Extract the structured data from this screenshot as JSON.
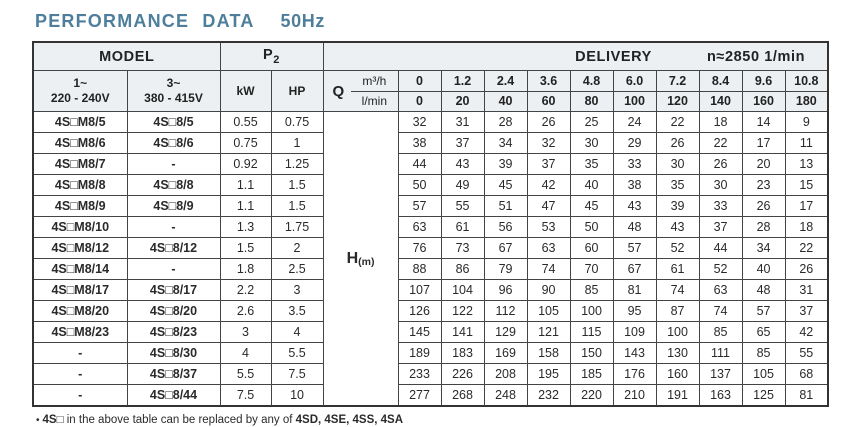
{
  "title": {
    "main": "PERFORMANCE DATA",
    "freq": "50Hz"
  },
  "colors": {
    "title_accent": "#4d7e9c",
    "header_bg": "#ecf0f3",
    "border": "#444444"
  },
  "table": {
    "header": {
      "model": "MODEL",
      "p2_base": "P",
      "p2_sub": "2",
      "delivery": "DELIVERY",
      "speed": "n≈2850 1/min",
      "col_1ph_line1": "1~",
      "col_1ph_line2": "220 - 240V",
      "col_3ph_line1": "3~",
      "col_3ph_line2": "380 - 415V",
      "kw": "kW",
      "hp": "HP",
      "q": "Q",
      "q_unit_top": "m³/h",
      "q_unit_bottom": "l/min",
      "flow_m3h": [
        "0",
        "1.2",
        "2.4",
        "3.6",
        "4.8",
        "6.0",
        "7.2",
        "8.4",
        "9.6",
        "10.8"
      ],
      "flow_lmin": [
        "0",
        "20",
        "40",
        "60",
        "80",
        "100",
        "120",
        "140",
        "160",
        "180"
      ]
    },
    "head_unit": {
      "label": "H",
      "unit": "(m)"
    },
    "rows": [
      {
        "model_1ph": "4S□M8/5",
        "model_3ph": "4S□8/5",
        "kw": "0.55",
        "hp": "0.75",
        "head": [
          32,
          31,
          28,
          26,
          25,
          24,
          22,
          18,
          14,
          9
        ]
      },
      {
        "model_1ph": "4S□M8/6",
        "model_3ph": "4S□8/6",
        "kw": "0.75",
        "hp": "1",
        "head": [
          38,
          37,
          34,
          32,
          30,
          29,
          26,
          22,
          17,
          11
        ]
      },
      {
        "model_1ph": "4S□M8/7",
        "model_3ph": "-",
        "kw": "0.92",
        "hp": "1.25",
        "head": [
          44,
          43,
          39,
          37,
          35,
          33,
          30,
          26,
          20,
          13
        ]
      },
      {
        "model_1ph": "4S□M8/8",
        "model_3ph": "4S□8/8",
        "kw": "1.1",
        "hp": "1.5",
        "head": [
          50,
          49,
          45,
          42,
          40,
          38,
          35,
          30,
          23,
          15
        ]
      },
      {
        "model_1ph": "4S□M8/9",
        "model_3ph": "4S□8/9",
        "kw": "1.1",
        "hp": "1.5",
        "head": [
          57,
          55,
          51,
          47,
          45,
          43,
          39,
          33,
          26,
          17
        ]
      },
      {
        "model_1ph": "4S□M8/10",
        "model_3ph": "-",
        "kw": "1.3",
        "hp": "1.75",
        "head": [
          63,
          61,
          56,
          53,
          50,
          48,
          43,
          37,
          28,
          18
        ]
      },
      {
        "model_1ph": "4S□M8/12",
        "model_3ph": "4S□8/12",
        "kw": "1.5",
        "hp": "2",
        "head": [
          76,
          73,
          67,
          63,
          60,
          57,
          52,
          44,
          34,
          22
        ]
      },
      {
        "model_1ph": "4S□M8/14",
        "model_3ph": "-",
        "kw": "1.8",
        "hp": "2.5",
        "head": [
          88,
          86,
          79,
          74,
          70,
          67,
          61,
          52,
          40,
          26
        ]
      },
      {
        "model_1ph": "4S□M8/17",
        "model_3ph": "4S□8/17",
        "kw": "2.2",
        "hp": "3",
        "head": [
          107,
          104,
          96,
          90,
          85,
          81,
          74,
          63,
          48,
          31
        ]
      },
      {
        "model_1ph": "4S□M8/20",
        "model_3ph": "4S□8/20",
        "kw": "2.6",
        "hp": "3.5",
        "head": [
          126,
          122,
          112,
          105,
          100,
          95,
          87,
          74,
          57,
          37
        ]
      },
      {
        "model_1ph": "4S□M8/23",
        "model_3ph": "4S□8/23",
        "kw": "3",
        "hp": "4",
        "head": [
          145,
          141,
          129,
          121,
          115,
          109,
          100,
          85,
          65,
          42
        ]
      },
      {
        "model_1ph": "-",
        "model_3ph": "4S□8/30",
        "kw": "4",
        "hp": "5.5",
        "head": [
          189,
          183,
          169,
          158,
          150,
          143,
          130,
          111,
          85,
          55
        ]
      },
      {
        "model_1ph": "-",
        "model_3ph": "4S□8/37",
        "kw": "5.5",
        "hp": "7.5",
        "head": [
          233,
          226,
          208,
          195,
          185,
          176,
          160,
          137,
          105,
          68
        ]
      },
      {
        "model_1ph": "-",
        "model_3ph": "4S□8/44",
        "kw": "7.5",
        "hp": "10",
        "head": [
          277,
          268,
          248,
          232,
          220,
          210,
          191,
          163,
          125,
          81
        ]
      }
    ]
  },
  "footnote": {
    "bullet": "•",
    "part_bold1": "4S□",
    "part_text": "in the above table can be replaced by any of",
    "part_bold2": "4SD, 4SE, 4SS, 4SA"
  }
}
